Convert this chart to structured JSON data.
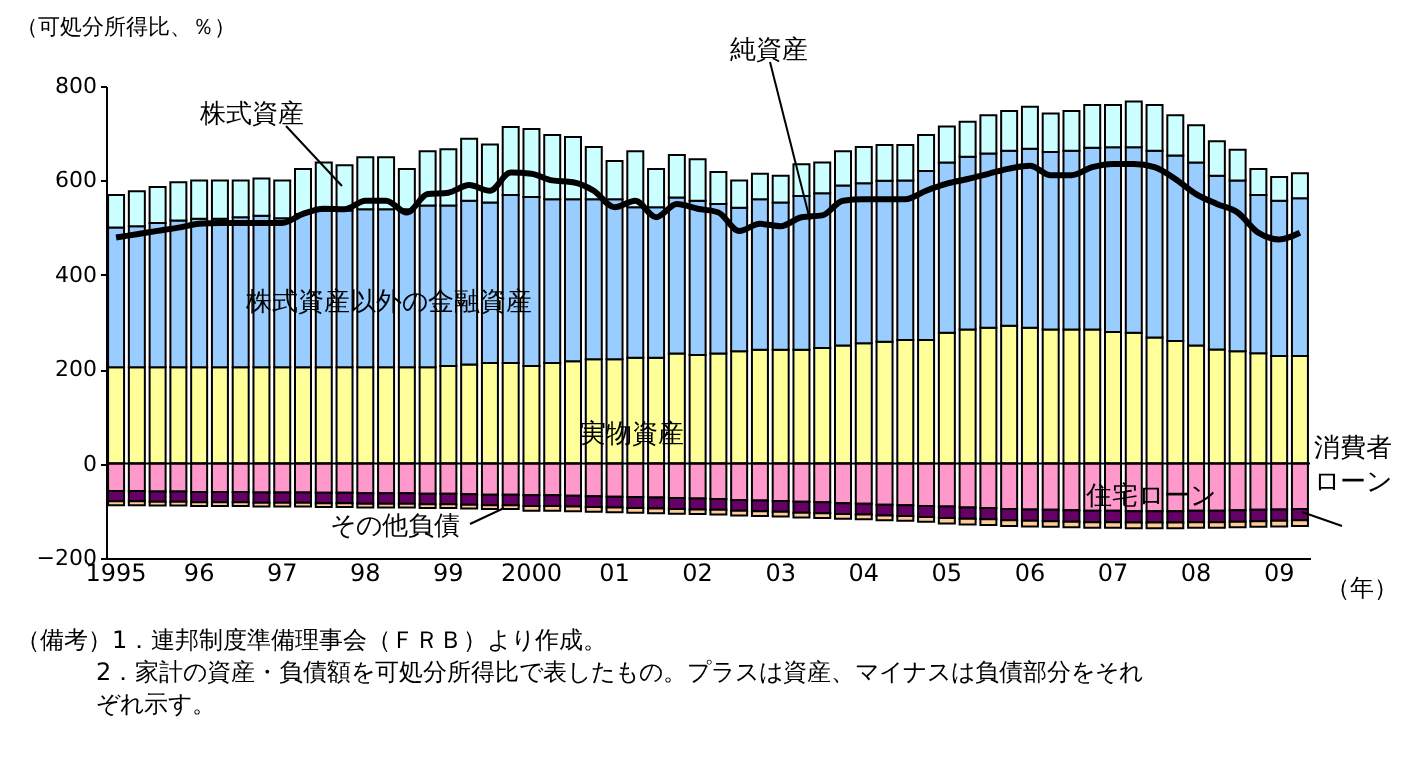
{
  "chart_data": {
    "type": "bar",
    "stacked": true,
    "ylabel": "（可処分所得比、％）",
    "xlabel": "（年）",
    "categories": [
      "1995",
      null,
      null,
      null,
      "96",
      null,
      null,
      null,
      "97",
      null,
      null,
      null,
      "98",
      null,
      null,
      null,
      "99",
      null,
      null,
      null,
      "2000",
      null,
      null,
      null,
      "01",
      null,
      null,
      null,
      "02",
      null,
      null,
      null,
      "03",
      null,
      null,
      null,
      "04",
      null,
      null,
      null,
      "05",
      null,
      null,
      null,
      "06",
      null,
      null,
      null,
      "07",
      null,
      null,
      null,
      "08",
      null,
      null,
      null,
      "09",
      null
    ],
    "series": [
      {
        "name": "実物資産",
        "color": "#ffff99",
        "values": [
          204,
          204,
          204,
          204,
          204,
          204,
          204,
          204,
          204,
          204,
          204,
          204,
          204,
          204,
          204,
          204,
          207,
          210,
          213,
          213,
          207,
          213,
          217,
          221,
          221,
          224,
          224,
          233,
          230,
          233,
          238,
          241,
          241,
          241,
          245,
          250,
          255,
          258,
          262,
          262,
          277,
          284,
          288,
          292,
          288,
          284,
          284,
          284,
          279,
          277,
          267,
          260,
          250,
          242,
          238,
          234,
          228,
          228
        ]
      },
      {
        "name": "株式資産以外の金融資産",
        "color": "#99ccff",
        "values": [
          296,
          299,
          306,
          311,
          315,
          315,
          318,
          321,
          316,
          325,
          332,
          332,
          335,
          335,
          335,
          343,
          340,
          347,
          340,
          356,
          358,
          347,
          343,
          339,
          339,
          319,
          319,
          331,
          327,
          317,
          304,
          319,
          312,
          326,
          328,
          339,
          339,
          341,
          338,
          358,
          361,
          366,
          369,
          371,
          379,
          376,
          379,
          385,
          391,
          393,
          396,
          393,
          388,
          368,
          362,
          335,
          329,
          334
        ]
      },
      {
        "name": "株式資産",
        "color": "#ccffff",
        "values": [
          69,
          74,
          76,
          81,
          81,
          81,
          78,
          79,
          80,
          95,
          102,
          96,
          110,
          110,
          85,
          115,
          119,
          131,
          123,
          144,
          144,
          136,
          132,
          111,
          81,
          119,
          81,
          90,
          88,
          68,
          58,
          54,
          57,
          67,
          65,
          73,
          77,
          76,
          75,
          76,
          76,
          74,
          81,
          84,
          89,
          82,
          84,
          91,
          90,
          97,
          97,
          85,
          79,
          73,
          65,
          55,
          50,
          53
        ]
      },
      {
        "name": "住宅ローン",
        "color": "#ff99cc",
        "values": [
          -58,
          -58,
          -59,
          -59,
          -60,
          -60,
          -60,
          -61,
          -61,
          -61,
          -62,
          -62,
          -63,
          -63,
          -63,
          -64,
          -64,
          -65,
          -66,
          -66,
          -67,
          -67,
          -68,
          -69,
          -70,
          -71,
          -72,
          -73,
          -74,
          -75,
          -77,
          -78,
          -79,
          -81,
          -82,
          -84,
          -85,
          -87,
          -88,
          -90,
          -91,
          -93,
          -94,
          -96,
          -97,
          -98,
          -99,
          -100,
          -100,
          -101,
          -101,
          -101,
          -100,
          -100,
          -99,
          -98,
          -97,
          -96
        ]
      },
      {
        "name": "消費者ローン",
        "color": "#660066",
        "values": [
          -22,
          -22,
          -22,
          -22,
          -22,
          -22,
          -22,
          -22,
          -22,
          -22,
          -22,
          -22,
          -22,
          -22,
          -22,
          -22,
          -22,
          -22,
          -22,
          -22,
          -23,
          -23,
          -23,
          -23,
          -23,
          -23,
          -23,
          -23,
          -23,
          -23,
          -23,
          -23,
          -23,
          -23,
          -23,
          -23,
          -23,
          -23,
          -23,
          -23,
          -24,
          -24,
          -24,
          -24,
          -24,
          -24,
          -24,
          -24,
          -24,
          -24,
          -24,
          -24,
          -24,
          -24,
          -24,
          -24,
          -24,
          -24
        ]
      },
      {
        "name": "その他負債",
        "color": "#ffcc99",
        "values": [
          -8,
          -8,
          -8,
          -8,
          -8,
          -8,
          -8,
          -8,
          -8,
          -8,
          -8,
          -8,
          -8,
          -8,
          -8,
          -8,
          -8,
          -8,
          -8,
          -8,
          -10,
          -10,
          -10,
          -10,
          -10,
          -10,
          -10,
          -10,
          -10,
          -10,
          -10,
          -10,
          -10,
          -10,
          -10,
          -10,
          -10,
          -10,
          -10,
          -10,
          -12,
          -12,
          -12,
          -12,
          -12,
          -12,
          -12,
          -12,
          -12,
          -12,
          -12,
          -12,
          -12,
          -12,
          -12,
          -12,
          -12,
          -12
        ]
      },
      {
        "name": "純資産",
        "type": "line",
        "color": "#000000",
        "values": [
          479,
          486,
          493,
          500,
          508,
          510,
          510,
          510,
          510,
          529,
          540,
          539,
          557,
          557,
          532,
          571,
          574,
          590,
          578,
          617,
          614,
          600,
          596,
          578,
          543,
          557,
          522,
          550,
          540,
          532,
          493,
          508,
          503,
          522,
          526,
          557,
          560,
          560,
          560,
          578,
          593,
          603,
          614,
          625,
          631,
          611,
          611,
          628,
          635,
          635,
          628,
          603,
          571,
          550,
          532,
          489,
          475,
          489
        ]
      }
    ],
    "ylim": [
      -200,
      800
    ],
    "yticks": [
      -200,
      0,
      200,
      400,
      600,
      800
    ],
    "ref_lines": [
      {
        "axis": "y",
        "value": 0,
        "color": "#000000"
      }
    ],
    "annotations": [
      "（備考）1．連邦制度準備理事会（ＦＲＢ）より作成。",
      "2．家計の資産・負債額を可処分所得比で表したもの。プラスは資産、マイナスは負債部分をそれぞれ示す。"
    ]
  }
}
